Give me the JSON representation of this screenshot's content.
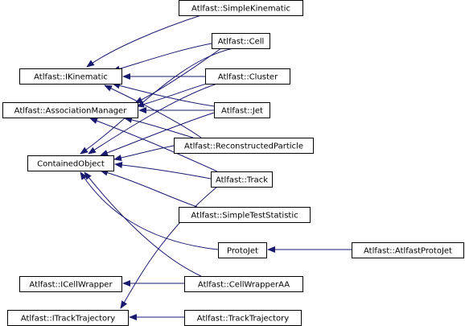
{
  "diagram": {
    "nodes": [
      {
        "id": "simplekinematic",
        "label": "Atlfast::SimpleKinematic"
      },
      {
        "id": "cell",
        "label": "Atlfast::Cell"
      },
      {
        "id": "ikinematic",
        "label": "Atlfast::IKinematic"
      },
      {
        "id": "cluster",
        "label": "Atlfast::Cluster"
      },
      {
        "id": "associationmanager",
        "label": "Atlfast::AssociationManager"
      },
      {
        "id": "jet",
        "label": "Atlfast::Jet"
      },
      {
        "id": "reconstructedparticle",
        "label": "Atlfast::ReconstructedParticle"
      },
      {
        "id": "containedobject",
        "label": "ContainedObject"
      },
      {
        "id": "track",
        "label": "Atlfast::Track"
      },
      {
        "id": "simpleteststatistic",
        "label": "Atlfast::SimpleTestStatistic"
      },
      {
        "id": "protojet",
        "label": "ProtoJet"
      },
      {
        "id": "atlfastprotojet",
        "label": "Atlfast::AtlfastProtoJet"
      },
      {
        "id": "icellwrapper",
        "label": "Atlfast::ICellWrapper"
      },
      {
        "id": "cellwrapperaa",
        "label": "Atlfast::CellWrapperAA"
      },
      {
        "id": "itracktrajectory",
        "label": "Atlfast::ITrackTrajectory"
      },
      {
        "id": "tracktrajectory",
        "label": "Atlfast::TrackTrajectory"
      }
    ],
    "edges": [
      {
        "from": "simplekinematic",
        "to": "ikinematic"
      },
      {
        "from": "cell",
        "to": "ikinematic"
      },
      {
        "from": "cluster",
        "to": "ikinematic"
      },
      {
        "from": "jet",
        "to": "ikinematic"
      },
      {
        "from": "reconstructedparticle",
        "to": "ikinematic"
      },
      {
        "from": "cell",
        "to": "associationmanager"
      },
      {
        "from": "cluster",
        "to": "associationmanager"
      },
      {
        "from": "jet",
        "to": "associationmanager"
      },
      {
        "from": "reconstructedparticle",
        "to": "associationmanager"
      },
      {
        "from": "track",
        "to": "associationmanager"
      },
      {
        "from": "cell",
        "to": "containedobject"
      },
      {
        "from": "cluster",
        "to": "containedobject"
      },
      {
        "from": "jet",
        "to": "containedobject"
      },
      {
        "from": "reconstructedparticle",
        "to": "containedobject"
      },
      {
        "from": "track",
        "to": "containedobject"
      },
      {
        "from": "simpleteststatistic",
        "to": "containedobject"
      },
      {
        "from": "protojet",
        "to": "containedobject"
      },
      {
        "from": "cellwrapperaa",
        "to": "containedobject"
      },
      {
        "from": "atlfastprotojet",
        "to": "protojet"
      },
      {
        "from": "cellwrapperaa",
        "to": "icellwrapper"
      },
      {
        "from": "track",
        "to": "itracktrajectory"
      },
      {
        "from": "tracktrajectory",
        "to": "itracktrajectory"
      }
    ],
    "colors": {
      "edge": "#191970",
      "node_border": "#000000",
      "node_fill": "#ffffff"
    }
  }
}
